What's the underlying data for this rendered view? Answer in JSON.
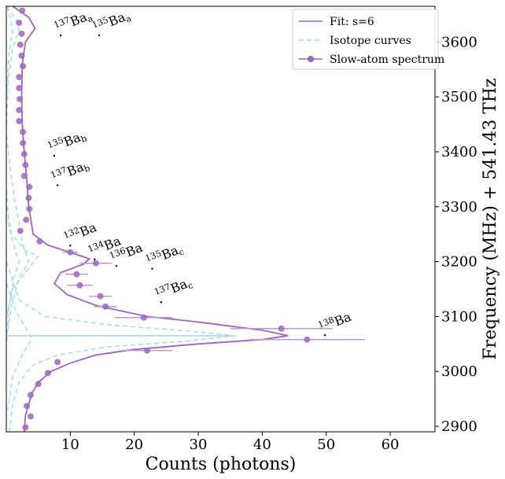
{
  "chart_data": {
    "type": "scatter",
    "xlabel": "Counts (photons)",
    "ylabel": "Frequency (MHz) + 541.43 THz",
    "xlim": [
      0,
      67
    ],
    "ylim": [
      2890,
      3665
    ],
    "xticks": [
      10,
      20,
      30,
      40,
      50,
      60
    ],
    "yticks": [
      2900,
      3000,
      3100,
      3200,
      3300,
      3400,
      3500,
      3600
    ],
    "legend": {
      "position": "top-right",
      "entries": [
        {
          "label": "Fit: s=6",
          "style": "line",
          "color": "#9966c0"
        },
        {
          "label": "Isotope curves",
          "style": "dashed",
          "color": "#a8d8ea"
        },
        {
          "label": "Slow-atom spectrum",
          "style": "marker-line",
          "color": "#9966c0"
        }
      ]
    },
    "series": [
      {
        "name": "Slow-atom spectrum",
        "color": "#9966c0",
        "points": [
          {
            "x": 2.5,
            "y": 3657
          },
          {
            "x": 2.0,
            "y": 3635
          },
          {
            "x": 2.4,
            "y": 3615
          },
          {
            "x": 2.2,
            "y": 3595
          },
          {
            "x": 2.4,
            "y": 3575
          },
          {
            "x": 2.6,
            "y": 3556
          },
          {
            "x": 2.0,
            "y": 3536
          },
          {
            "x": 2.0,
            "y": 3516
          },
          {
            "x": 2.1,
            "y": 3496
          },
          {
            "x": 2.0,
            "y": 3476
          },
          {
            "x": 2.0,
            "y": 3456
          },
          {
            "x": 2.6,
            "y": 3436
          },
          {
            "x": 2.6,
            "y": 3416
          },
          {
            "x": 2.8,
            "y": 3396
          },
          {
            "x": 3.0,
            "y": 3376
          },
          {
            "x": 2.8,
            "y": 3356
          },
          {
            "x": 3.6,
            "y": 3336
          },
          {
            "x": 3.5,
            "y": 3316
          },
          {
            "x": 3.6,
            "y": 3296
          },
          {
            "x": 3.1,
            "y": 3276
          },
          {
            "x": 2.2,
            "y": 3256
          },
          {
            "x": 5.2,
            "y": 3237
          },
          {
            "x": 10.0,
            "y": 3217,
            "xerr": 1.2
          },
          {
            "x": 14.0,
            "y": 3197,
            "xerr": 2.5
          },
          {
            "x": 11.0,
            "y": 3177,
            "xerr": 1.8
          },
          {
            "x": 11.5,
            "y": 3157,
            "xerr": 2.0
          },
          {
            "x": 14.7,
            "y": 3137,
            "xerr": 1.8
          },
          {
            "x": 15.5,
            "y": 3118,
            "xerr": 1.8
          },
          {
            "x": 21.5,
            "y": 3098,
            "xerr": 4.5
          },
          {
            "x": 43.0,
            "y": 3078,
            "xerr": 8.0
          },
          {
            "x": 47.0,
            "y": 3058,
            "xerr": 9.0
          },
          {
            "x": 22.0,
            "y": 3038,
            "xerr": 4.0
          },
          {
            "x": 8.0,
            "y": 3017
          },
          {
            "x": 6.5,
            "y": 2997
          },
          {
            "x": 5.0,
            "y": 2977
          },
          {
            "x": 3.8,
            "y": 2957
          },
          {
            "x": 3.2,
            "y": 2937
          },
          {
            "x": 3.8,
            "y": 2918
          },
          {
            "x": 3.0,
            "y": 2898
          }
        ]
      },
      {
        "name": "Fit: s=6",
        "color": "#9966c0",
        "style": "solid",
        "points": [
          {
            "x": 1.0,
            "y": 3665
          },
          {
            "x": 3.5,
            "y": 3645
          },
          {
            "x": 4.5,
            "y": 3625
          },
          {
            "x": 3.0,
            "y": 3600
          },
          {
            "x": 2.5,
            "y": 3560
          },
          {
            "x": 2.4,
            "y": 3500
          },
          {
            "x": 2.5,
            "y": 3450
          },
          {
            "x": 2.8,
            "y": 3400
          },
          {
            "x": 3.2,
            "y": 3350
          },
          {
            "x": 3.5,
            "y": 3300
          },
          {
            "x": 4.2,
            "y": 3250
          },
          {
            "x": 6.5,
            "y": 3230
          },
          {
            "x": 10.5,
            "y": 3215
          },
          {
            "x": 13.0,
            "y": 3205
          },
          {
            "x": 12.0,
            "y": 3195
          },
          {
            "x": 8.5,
            "y": 3180
          },
          {
            "x": 7.5,
            "y": 3160
          },
          {
            "x": 9.5,
            "y": 3140
          },
          {
            "x": 14.0,
            "y": 3120
          },
          {
            "x": 22.0,
            "y": 3100
          },
          {
            "x": 30.0,
            "y": 3090
          },
          {
            "x": 40.0,
            "y": 3075
          },
          {
            "x": 44.0,
            "y": 3065
          },
          {
            "x": 40.0,
            "y": 3058
          },
          {
            "x": 30.0,
            "y": 3050
          },
          {
            "x": 20.0,
            "y": 3040
          },
          {
            "x": 14.0,
            "y": 3030
          },
          {
            "x": 10.0,
            "y": 3015
          },
          {
            "x": 7.0,
            "y": 3000
          },
          {
            "x": 5.0,
            "y": 2980
          },
          {
            "x": 4.0,
            "y": 2960
          },
          {
            "x": 3.5,
            "y": 2940
          },
          {
            "x": 3.0,
            "y": 2920
          },
          {
            "x": 2.8,
            "y": 2890
          }
        ]
      },
      {
        "name": "Isotope curves",
        "color": "#a8d8ea",
        "style": "dashed",
        "curves": [
          [
            {
              "x": 0.1,
              "y": 3665
            },
            {
              "x": 1.5,
              "y": 3640
            },
            {
              "x": 2.0,
              "y": 3620
            },
            {
              "x": 1.0,
              "y": 3590
            },
            {
              "x": 0.3,
              "y": 3530
            },
            {
              "x": 0.05,
              "y": 3450
            }
          ],
          [
            {
              "x": 0.1,
              "y": 3665
            },
            {
              "x": 0.6,
              "y": 3645
            },
            {
              "x": 1.0,
              "y": 3620
            },
            {
              "x": 0.4,
              "y": 3580
            },
            {
              "x": 0.05,
              "y": 3500
            }
          ],
          [
            {
              "x": 0.05,
              "y": 3430
            },
            {
              "x": 0.5,
              "y": 3380
            },
            {
              "x": 1.2,
              "y": 3320
            },
            {
              "x": 2.0,
              "y": 3270
            },
            {
              "x": 2.6,
              "y": 3230
            },
            {
              "x": 3.5,
              "y": 3200
            },
            {
              "x": 2.0,
              "y": 3170
            },
            {
              "x": 0.8,
              "y": 3120
            },
            {
              "x": 0.2,
              "y": 3070
            }
          ],
          [
            {
              "x": 0.05,
              "y": 3330
            },
            {
              "x": 0.5,
              "y": 3260
            },
            {
              "x": 1.4,
              "y": 3220
            },
            {
              "x": 2.0,
              "y": 3200
            },
            {
              "x": 1.2,
              "y": 3170
            },
            {
              "x": 0.4,
              "y": 3120
            },
            {
              "x": 0.05,
              "y": 3050
            }
          ],
          [
            {
              "x": 0.05,
              "y": 3300
            },
            {
              "x": 0.8,
              "y": 3250
            },
            {
              "x": 3.0,
              "y": 3220
            },
            {
              "x": 5.0,
              "y": 3210
            },
            {
              "x": 3.0,
              "y": 3180
            },
            {
              "x": 1.0,
              "y": 3150
            },
            {
              "x": 0.1,
              "y": 3100
            }
          ],
          [
            {
              "x": 0.05,
              "y": 3200
            },
            {
              "x": 2.0,
              "y": 3130
            },
            {
              "x": 6.0,
              "y": 3100
            },
            {
              "x": 16.0,
              "y": 3085
            },
            {
              "x": 29.0,
              "y": 3073
            },
            {
              "x": 35.7,
              "y": 3065
            },
            {
              "x": 28.0,
              "y": 3055
            },
            {
              "x": 16.0,
              "y": 3045
            },
            {
              "x": 8.0,
              "y": 3030
            },
            {
              "x": 4.0,
              "y": 3010
            },
            {
              "x": 2.0,
              "y": 2980
            },
            {
              "x": 1.0,
              "y": 2940
            },
            {
              "x": 0.5,
              "y": 2890
            }
          ],
          [
            {
              "x": 0.05,
              "y": 3160
            },
            {
              "x": 1.5,
              "y": 3110
            },
            {
              "x": 3.0,
              "y": 3080
            },
            {
              "x": 4.0,
              "y": 3060
            },
            {
              "x": 2.5,
              "y": 3030
            },
            {
              "x": 1.0,
              "y": 2990
            },
            {
              "x": 0.2,
              "y": 2930
            }
          ]
        ],
        "solid_line": {
          "y": 3065,
          "x_from": 0,
          "x_to": 36
        }
      }
    ],
    "annotations": [
      {
        "label": "137Ba_a",
        "text_iso": "137",
        "text_base": "Ba",
        "text_sub": "a",
        "x": 8.5,
        "y": 3612
      },
      {
        "label": "135Ba_a",
        "text_iso": "135",
        "text_base": "Ba",
        "text_sub": "a",
        "x": 14.5,
        "y": 3612
      },
      {
        "label": "135Ba_b",
        "text_iso": "135",
        "text_base": "Ba",
        "text_sub": "b",
        "x": 7.5,
        "y": 3393
      },
      {
        "label": "137Ba_b",
        "text_iso": "137",
        "text_base": "Ba",
        "text_sub": "b",
        "x": 8.0,
        "y": 3339
      },
      {
        "label": "132Ba",
        "text_iso": "132",
        "text_base": "Ba",
        "text_sub": "",
        "x": 10.0,
        "y": 3229
      },
      {
        "label": "134Ba",
        "text_iso": "134",
        "text_base": "Ba",
        "text_sub": "",
        "x": 13.8,
        "y": 3204
      },
      {
        "label": "136Ba",
        "text_iso": "136",
        "text_base": "Ba",
        "text_sub": "",
        "x": 17.2,
        "y": 3192
      },
      {
        "label": "135Ba_c",
        "text_iso": "135",
        "text_base": "Ba",
        "text_sub": "c",
        "x": 22.8,
        "y": 3187
      },
      {
        "label": "137Ba_c",
        "text_iso": "137",
        "text_base": "Ba",
        "text_sub": "c",
        "x": 24.2,
        "y": 3126
      },
      {
        "label": "138Ba",
        "text_iso": "138",
        "text_base": "Ba",
        "text_sub": "",
        "x": 49.8,
        "y": 3066
      }
    ]
  }
}
